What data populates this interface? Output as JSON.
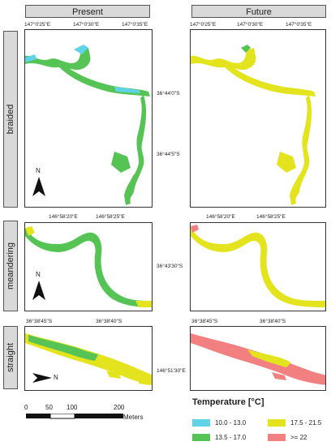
{
  "columns": [
    "Present",
    "Future"
  ],
  "rows": [
    "braided",
    "meandering",
    "straight"
  ],
  "ticks": {
    "braided_top": [
      "147°0'25\"E",
      "147°0'30\"E",
      "147°0'35\"E"
    ],
    "braided_mid": [
      "36°44'0\"S",
      "36°44'5\"S"
    ],
    "meandering_top": [
      "146°58'20\"E",
      "146°58'25\"E"
    ],
    "meandering_mid": [
      "36°43'30\"S"
    ],
    "straight_top": [
      "36°38'45\"S",
      "36°38'40\"S"
    ],
    "straight_mid": [
      "146°51'30\"E"
    ]
  },
  "north": "N",
  "scale": {
    "labels": [
      "0",
      "50",
      "100",
      "200"
    ],
    "unit": "Meters"
  },
  "legend": {
    "title": "Temperature [°C]",
    "items": [
      {
        "label": "10.0 - 13.0",
        "color": "#5fd3e8"
      },
      {
        "label": "17.5 - 21.5",
        "color": "#e4e41e"
      },
      {
        "label": "13.5 - 17.0",
        "color": "#55c455"
      },
      {
        "label": ">= 22",
        "color": "#f28080"
      }
    ]
  }
}
